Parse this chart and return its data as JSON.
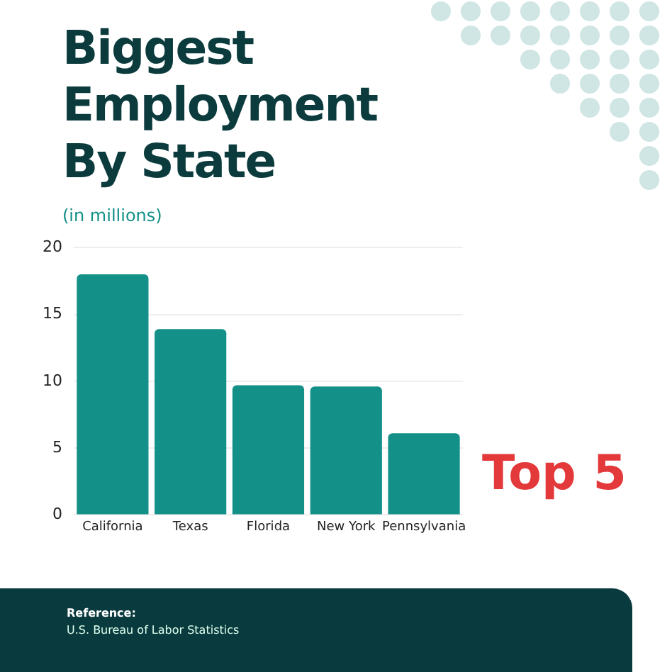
{
  "chart_data": {
    "type": "bar",
    "title": "Biggest Employment By State",
    "ylabel": "(in millions)",
    "categories": [
      "California",
      "Texas",
      "Florida",
      "New York",
      "Pennsylvania"
    ],
    "values": [
      18.0,
      13.9,
      9.7,
      9.6,
      6.1
    ],
    "color": "#139088",
    "ylim": [
      0,
      20
    ],
    "yticks": [
      0,
      5,
      10,
      15,
      20
    ],
    "grid": "y",
    "annotations": [
      "Top 5",
      "Reference:",
      "U.S. Bureau of Labor Statistics"
    ]
  }
}
